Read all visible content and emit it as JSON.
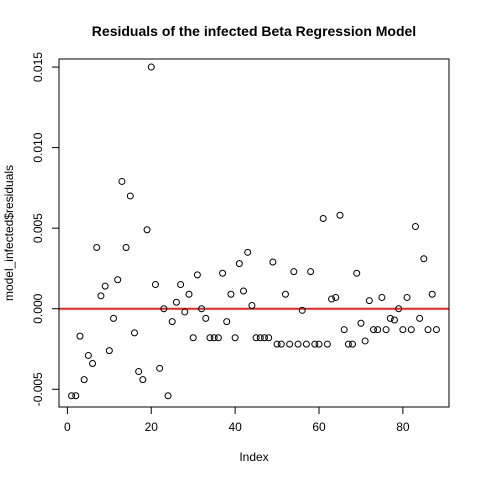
{
  "chart_data": {
    "type": "scatter",
    "title": "Residuals of the infected Beta Regression Model",
    "xlabel": "Index",
    "ylabel": "model_infected$residuals",
    "xlim": [
      -2,
      91
    ],
    "ylim": [
      -0.0061,
      0.0155
    ],
    "xticks": [
      0,
      20,
      40,
      60,
      80
    ],
    "xtick_labels": [
      "0",
      "20",
      "40",
      "60",
      "80"
    ],
    "yticks": [
      -0.005,
      0.0,
      0.005,
      0.01,
      0.015
    ],
    "ytick_labels": [
      "-0.005",
      "0.000",
      "0.005",
      "0.010",
      "0.015"
    ],
    "reference_line": {
      "y": 0.0,
      "color": "#e8261f"
    },
    "point_color": "#000000",
    "x": [
      1,
      2,
      3,
      4,
      5,
      6,
      7,
      8,
      9,
      10,
      11,
      12,
      13,
      14,
      15,
      16,
      17,
      18,
      19,
      20,
      21,
      22,
      23,
      24,
      25,
      26,
      27,
      28,
      29,
      30,
      31,
      32,
      33,
      34,
      35,
      36,
      37,
      38,
      39,
      40,
      41,
      42,
      43,
      44,
      45,
      46,
      47,
      48,
      49,
      50,
      51,
      52,
      53,
      54,
      55,
      56,
      57,
      58,
      59,
      60,
      61,
      62,
      63,
      64,
      65,
      66,
      67,
      68,
      69,
      70,
      71,
      72,
      73,
      74,
      75,
      76,
      77,
      78,
      79,
      80,
      81,
      82,
      83,
      84,
      85,
      86,
      87,
      88
    ],
    "y": [
      -0.0054,
      -0.0054,
      -0.0017,
      -0.0044,
      -0.0029,
      -0.0034,
      0.0038,
      0.0008,
      0.0014,
      -0.0026,
      -0.0006,
      0.0018,
      0.0079,
      0.0038,
      0.007,
      -0.0015,
      -0.0039,
      -0.0044,
      0.0049,
      0.015,
      0.0015,
      -0.0037,
      0.0,
      -0.0054,
      -0.0008,
      0.0004,
      0.0015,
      -0.0002,
      0.0009,
      -0.0018,
      0.0021,
      0.0,
      -0.0006,
      -0.0018,
      -0.0018,
      -0.0018,
      0.0022,
      -0.0008,
      0.0009,
      -0.0018,
      0.0028,
      0.0011,
      0.0035,
      0.0002,
      -0.0018,
      -0.0018,
      -0.0018,
      -0.0018,
      0.0029,
      -0.0022,
      -0.0022,
      0.0009,
      -0.0022,
      0.0023,
      -0.0022,
      -0.0001,
      -0.0022,
      0.0023,
      -0.0022,
      -0.0022,
      0.0056,
      -0.0022,
      0.0006,
      0.0007,
      0.0058,
      -0.0013,
      -0.0022,
      -0.0022,
      0.0022,
      -0.0009,
      -0.002,
      0.0005,
      -0.0013,
      -0.0013,
      0.0007,
      -0.0013,
      -0.0006,
      -0.0007,
      0.0,
      -0.0013,
      0.0007,
      -0.0013,
      0.0051,
      -0.0006,
      0.0031,
      -0.0013,
      0.0009,
      -0.0013
    ]
  }
}
